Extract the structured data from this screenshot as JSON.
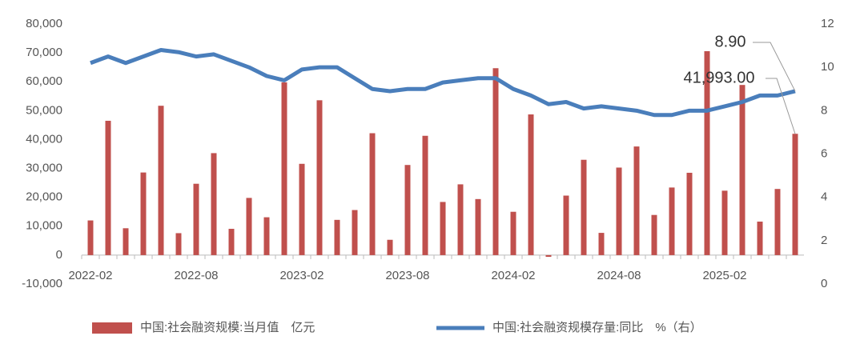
{
  "chart_data": {
    "type": "combo",
    "categories": [
      "2022-02",
      null,
      null,
      null,
      null,
      null,
      "2022-08",
      null,
      null,
      null,
      null,
      null,
      "2023-02",
      null,
      null,
      null,
      null,
      null,
      "2023-08",
      null,
      null,
      null,
      null,
      null,
      "2024-02",
      null,
      null,
      null,
      null,
      null,
      "2024-08",
      null,
      null,
      null,
      null,
      null,
      "2025-02",
      null,
      null,
      null,
      null
    ],
    "series": [
      {
        "name": "中国:社会融资规模:当月值　亿元",
        "type": "bar",
        "color": "#c0504d",
        "axis": "y",
        "values": [
          12000,
          46500,
          9300,
          28600,
          51700,
          7600,
          24700,
          35300,
          9100,
          19800,
          13100,
          59800,
          31600,
          53600,
          12200,
          15600,
          42200,
          5300,
          31200,
          41300,
          18400,
          24500,
          19400,
          64700,
          15000,
          48700,
          -600,
          20600,
          33000,
          7700,
          30300,
          37600,
          13900,
          23400,
          28500,
          70600,
          22300,
          58900,
          11600,
          22900,
          41993
        ],
        "value_labels": [
          null,
          null,
          null,
          null,
          null,
          null,
          null,
          null,
          null,
          null,
          null,
          null,
          null,
          null,
          null,
          null,
          null,
          null,
          null,
          null,
          null,
          null,
          null,
          null,
          null,
          null,
          null,
          null,
          null,
          null,
          null,
          null,
          null,
          null,
          null,
          null,
          null,
          null,
          null,
          null,
          "41,993.00"
        ]
      },
      {
        "name": "中国:社会融资规模存量:同比　%（右）",
        "type": "line",
        "color": "#4a7ebb",
        "axis": "y2",
        "values": [
          10.2,
          10.5,
          10.2,
          10.5,
          10.8,
          10.7,
          10.5,
          10.6,
          10.3,
          10.0,
          9.6,
          9.4,
          9.9,
          10.0,
          10.0,
          9.5,
          9.0,
          8.9,
          9.0,
          9.0,
          9.3,
          9.4,
          9.5,
          9.5,
          9.0,
          8.7,
          8.3,
          8.4,
          8.1,
          8.2,
          8.1,
          8.0,
          7.8,
          7.8,
          8.0,
          8.0,
          8.2,
          8.4,
          8.7,
          8.7,
          8.9
        ],
        "value_labels": [
          null,
          null,
          null,
          null,
          null,
          null,
          null,
          null,
          null,
          null,
          null,
          null,
          null,
          null,
          null,
          null,
          null,
          null,
          null,
          null,
          null,
          null,
          null,
          null,
          null,
          null,
          null,
          null,
          null,
          null,
          null,
          null,
          null,
          null,
          null,
          null,
          null,
          null,
          null,
          null,
          "8.90"
        ]
      }
    ],
    "ylim": [
      -10000,
      80000
    ],
    "yticks": [
      {
        "value": -10000,
        "label": "-10,000"
      },
      0,
      {
        "value": 10000,
        "label": "10,000"
      },
      {
        "value": 20000,
        "label": "20,000"
      },
      {
        "value": 30000,
        "label": "30,000"
      },
      {
        "value": 40000,
        "label": "40,000"
      },
      {
        "value": 50000,
        "label": "50,000"
      },
      {
        "value": 60000,
        "label": "60,000"
      },
      {
        "value": 70000,
        "label": "70,000"
      },
      {
        "value": 80000,
        "label": "80,000"
      }
    ],
    "y2lim": [
      0,
      12
    ],
    "y2ticks": [
      0,
      2,
      4,
      6,
      8,
      10,
      12
    ],
    "grid": false,
    "legend": "bottom"
  }
}
